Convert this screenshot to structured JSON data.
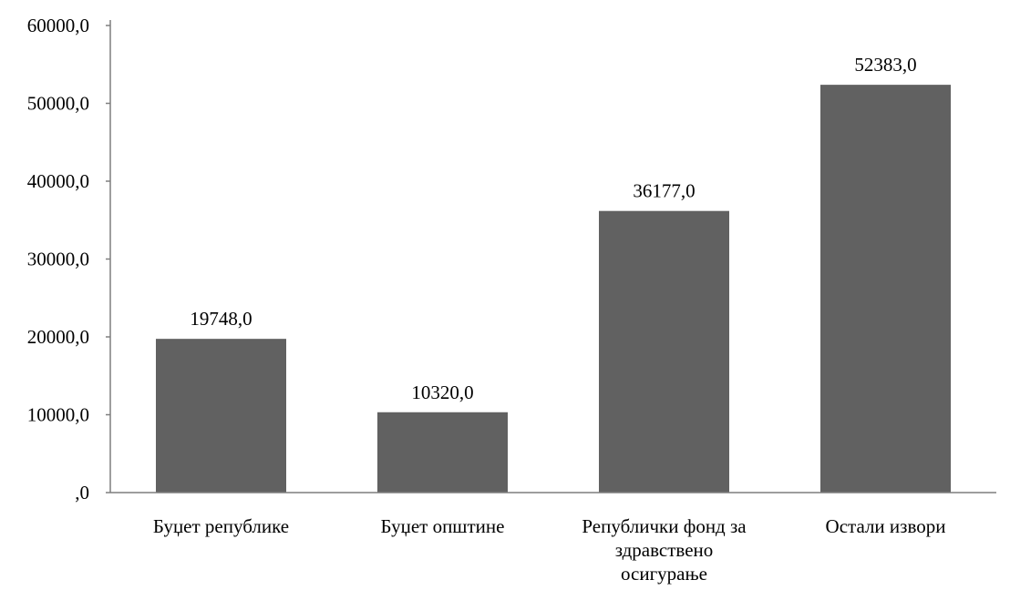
{
  "chart_data": {
    "type": "bar",
    "title": "",
    "xlabel": "",
    "ylabel": "",
    "ylim": [
      0,
      60000
    ],
    "yticks": [
      0,
      10000,
      20000,
      30000,
      40000,
      50000,
      60000
    ],
    "ytick_labels": [
      ",0",
      "10000,0",
      "20000,0",
      "30000,0",
      "40000,0",
      "50000,0",
      "60000,0"
    ],
    "categories": [
      [
        "Буџет републике"
      ],
      [
        "Буџет општине"
      ],
      [
        "Републички фонд за",
        "здравствено",
        "осигурање"
      ],
      [
        "Остали извори"
      ]
    ],
    "values": [
      19748,
      10320,
      36177,
      52383
    ],
    "data_labels": [
      "19748,0",
      "10320,0",
      "36177,0",
      "52383,0"
    ],
    "bar_color": "#616161",
    "axis_color": "#7f7f7f",
    "grid": false,
    "legend": "none"
  }
}
